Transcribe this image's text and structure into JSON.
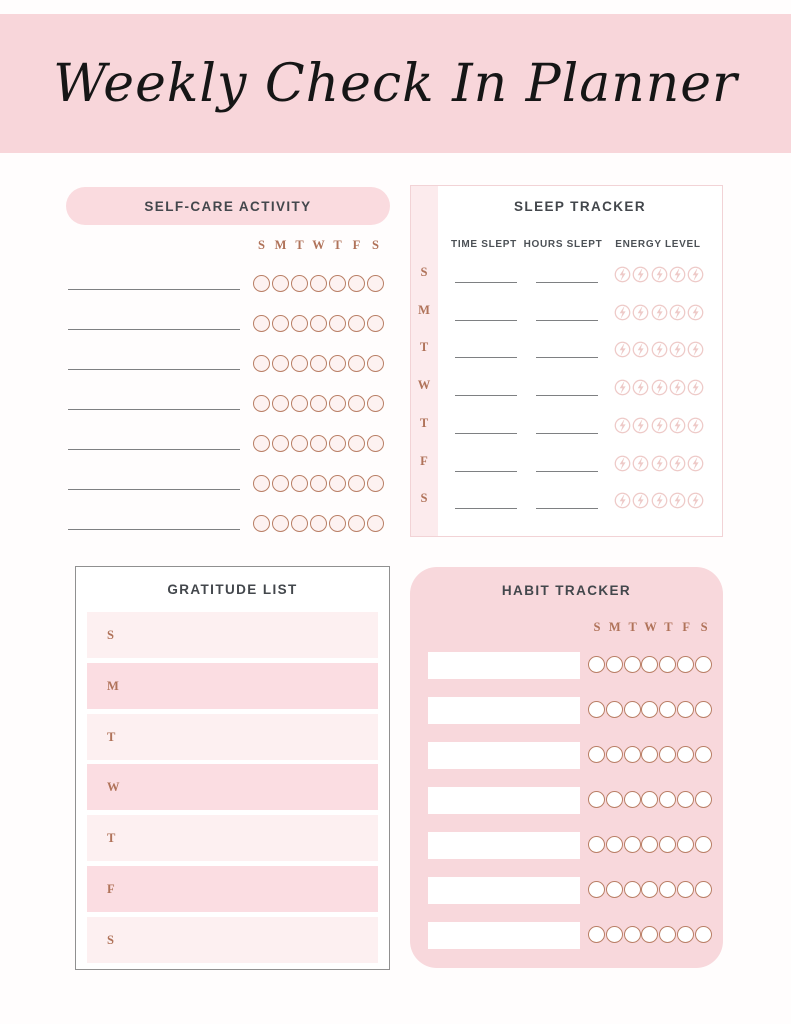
{
  "header": {
    "title": "Weekly Check In Planner"
  },
  "days": [
    "S",
    "M",
    "T",
    "W",
    "T",
    "F",
    "S"
  ],
  "self_care": {
    "title": "SELF-CARE ACTIVITY",
    "rows": 7,
    "entries": [
      "",
      "",
      "",
      "",
      "",
      "",
      ""
    ]
  },
  "sleep_tracker": {
    "title": "SLEEP TRACKER",
    "columns": [
      "TIME SLEPT",
      "HOURS SLEPT",
      "ENERGY LEVEL"
    ],
    "energy_icons_per_row": 5,
    "time_slept_values": [
      "",
      "",
      "",
      "",
      "",
      "",
      ""
    ],
    "hours_slept_values": [
      "",
      "",
      "",
      "",
      "",
      "",
      ""
    ]
  },
  "gratitude_list": {
    "title": "GRATITUDE LIST",
    "entries": [
      "",
      "",
      "",
      "",
      "",
      "",
      ""
    ]
  },
  "habit_tracker": {
    "title": "HABIT TRACKER",
    "habits": [
      "",
      "",
      "",
      "",
      "",
      "",
      ""
    ]
  },
  "icons": {
    "energy": "lightning-bolt-in-circle"
  },
  "colors": {
    "page_bg": "#fffdfd",
    "band_pink": "#f8d6da",
    "pill_pink": "#fadbdf",
    "habit_pink": "#f8d8dc",
    "strip_pink": "#fcebed",
    "row_light_pink": "#fdf0f1",
    "row_dark_pink": "#fbdde2",
    "circle_fill": "#fdf2f1",
    "rose_outline": "#b97f66",
    "day_letter": "#b0735a",
    "title_text": "#43474c",
    "muted_text": "#4c5156",
    "line_gray": "#7e8082",
    "sleep_border": "#f2d3d6",
    "box_border": "#909090",
    "energy_pink": "#eecac8",
    "script_ink": "#161616"
  }
}
